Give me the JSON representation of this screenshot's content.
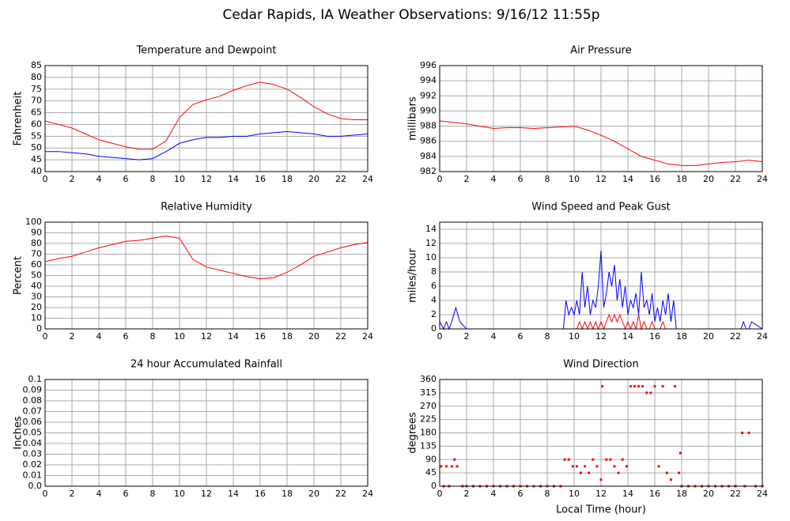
{
  "title": "Cedar Rapids, IA Weather Observations: 9/16/12 11:55p",
  "chart_data": [
    {
      "type": "line",
      "title": "Temperature and Dewpoint",
      "ylabel": "Fahrenheit",
      "x": [
        0,
        1,
        2,
        3,
        4,
        5,
        6,
        7,
        8,
        9,
        10,
        11,
        12,
        13,
        14,
        15,
        16,
        17,
        18,
        19,
        20,
        21,
        22,
        23,
        24
      ],
      "series": [
        {
          "name": "Temperature",
          "color": "#ff0000",
          "values": [
            61.5,
            60,
            58.5,
            56,
            53.5,
            52,
            50.5,
            49.5,
            49.5,
            53,
            63,
            68.5,
            70.5,
            72,
            74.5,
            76.5,
            78,
            77,
            75,
            71.5,
            67.5,
            64.5,
            62.5,
            62,
            62
          ]
        },
        {
          "name": "Dewpoint",
          "color": "#0000ff",
          "values": [
            48.5,
            48.5,
            48,
            47.5,
            46.5,
            46,
            45.5,
            45,
            45.5,
            48.5,
            52,
            53.5,
            54.5,
            54.5,
            55,
            55,
            56,
            56.5,
            57,
            56.5,
            56,
            55,
            55,
            55.5,
            56
          ]
        }
      ],
      "xlim": [
        0,
        24
      ],
      "ylim": [
        40,
        85
      ],
      "xticks": [
        0,
        2,
        4,
        6,
        8,
        10,
        12,
        14,
        16,
        18,
        20,
        22,
        24
      ],
      "yticks": [
        40,
        45,
        50,
        55,
        60,
        65,
        70,
        75,
        80,
        85
      ],
      "grid": true
    },
    {
      "type": "line",
      "title": "Air Pressure",
      "ylabel": "millibars",
      "x": [
        0,
        1,
        2,
        3,
        4,
        5,
        6,
        7,
        8,
        9,
        10,
        11,
        12,
        13,
        14,
        15,
        16,
        17,
        18,
        19,
        20,
        21,
        22,
        23,
        24
      ],
      "series": [
        {
          "name": "Pressure",
          "color": "#ff0000",
          "values": [
            988.7,
            988.5,
            988.3,
            988,
            987.7,
            987.8,
            987.8,
            987.7,
            987.8,
            987.9,
            988,
            987.5,
            986.8,
            986,
            985,
            984,
            983.5,
            983,
            982.8,
            982.8,
            983,
            983.2,
            983.3,
            983.5,
            983.3
          ]
        }
      ],
      "xlim": [
        0,
        24
      ],
      "ylim": [
        982,
        996
      ],
      "xticks": [
        0,
        2,
        4,
        6,
        8,
        10,
        12,
        14,
        16,
        18,
        20,
        22,
        24
      ],
      "yticks": [
        982,
        984,
        986,
        988,
        990,
        992,
        994,
        996
      ],
      "grid": true
    },
    {
      "type": "line",
      "title": "Relative Humidity",
      "ylabel": "Percent",
      "x": [
        0,
        1,
        2,
        3,
        4,
        5,
        6,
        7,
        8,
        9,
        10,
        11,
        12,
        13,
        14,
        15,
        16,
        17,
        18,
        19,
        20,
        21,
        22,
        23,
        24
      ],
      "series": [
        {
          "name": "Humidity",
          "color": "#ff0000",
          "values": [
            63,
            66,
            68,
            72,
            76,
            79,
            82,
            83,
            85,
            87,
            85,
            65,
            58,
            55,
            52,
            49,
            47,
            48,
            53,
            60,
            68,
            72,
            76,
            79,
            81
          ]
        }
      ],
      "xlim": [
        0,
        24
      ],
      "ylim": [
        0,
        100
      ],
      "xticks": [
        0,
        2,
        4,
        6,
        8,
        10,
        12,
        14,
        16,
        18,
        20,
        22,
        24
      ],
      "yticks": [
        0,
        10,
        20,
        30,
        40,
        50,
        60,
        70,
        80,
        90,
        100
      ],
      "grid": true
    },
    {
      "type": "line",
      "title": "Wind Speed and Peak Gust",
      "ylabel": "miles/hour",
      "x": [
        0,
        0.3,
        0.5,
        0.7,
        0.9,
        1.2,
        1.5,
        2,
        9.2,
        9.4,
        9.6,
        9.8,
        10,
        10.2,
        10.4,
        10.6,
        10.8,
        11,
        11.2,
        11.4,
        11.6,
        11.8,
        12,
        12.2,
        12.4,
        12.6,
        12.8,
        13,
        13.2,
        13.4,
        13.6,
        13.8,
        14,
        14.2,
        14.4,
        14.6,
        14.8,
        15,
        15.2,
        15.4,
        15.6,
        15.8,
        16,
        16.2,
        16.4,
        16.6,
        16.8,
        17,
        17.2,
        17.4,
        17.6,
        17.8,
        18,
        22.4,
        22.6,
        22.8,
        23,
        23.2,
        24
      ],
      "series": [
        {
          "name": "Wind Speed",
          "color": "#0000ff",
          "values": [
            1,
            0,
            1,
            0,
            1,
            3,
            1,
            0,
            0,
            4,
            2,
            3,
            2,
            4,
            2,
            8,
            3,
            6,
            2,
            4,
            3,
            6,
            11,
            3,
            5,
            8,
            6,
            9,
            4,
            7,
            3,
            6,
            2,
            4,
            3,
            5,
            2,
            8,
            3,
            4,
            2,
            5,
            1,
            3,
            1,
            4,
            2,
            5,
            1,
            4,
            0,
            0,
            0,
            0,
            1,
            0,
            0,
            1,
            0
          ]
        },
        {
          "name": "Peak Gust",
          "color": "#ff0000",
          "values": [
            0,
            0,
            0,
            0,
            0,
            0,
            0,
            0,
            0,
            0,
            0,
            0,
            0,
            0,
            1,
            0,
            1,
            0,
            1,
            0,
            1,
            0,
            1,
            0,
            1,
            2,
            1,
            2,
            1,
            2,
            1,
            0,
            1,
            0,
            1,
            0,
            2,
            0,
            1,
            0,
            0,
            1,
            0,
            0,
            0,
            1,
            0,
            0,
            0,
            0,
            0,
            0,
            0,
            0,
            0,
            0,
            0,
            0,
            0
          ]
        }
      ],
      "xlim": [
        0,
        24
      ],
      "ylim": [
        0,
        15
      ],
      "xticks": [
        0,
        2,
        4,
        6,
        8,
        10,
        12,
        14,
        16,
        18,
        20,
        22,
        24
      ],
      "yticks": [
        0,
        2,
        4,
        6,
        8,
        10,
        12,
        14
      ],
      "grid": true
    },
    {
      "type": "line",
      "title": "24 hour Accumulated Rainfall",
      "ylabel": "Inches",
      "x": [
        0,
        24
      ],
      "series": [
        {
          "name": "Rainfall",
          "color": "#ff0000",
          "values": [
            0,
            0
          ]
        }
      ],
      "xlim": [
        0,
        24
      ],
      "ylim": [
        0,
        0.1
      ],
      "xticks": [
        0,
        2,
        4,
        6,
        8,
        10,
        12,
        14,
        16,
        18,
        20,
        22,
        24
      ],
      "yticks": [
        {
          "value": 0,
          "label": "0.0"
        },
        0.01,
        0.02,
        0.03,
        0.04,
        0.05,
        0.06,
        0.07,
        0.08,
        0.09,
        0.1
      ],
      "grid": true
    },
    {
      "type": "scatter",
      "title": "Wind Direction",
      "ylabel": "degrees",
      "xlabel": "Local Time (hour)",
      "color": "#ff0000",
      "x": [
        0.1,
        0.3,
        0.5,
        0.7,
        0.9,
        1.1,
        1.3,
        1.7,
        2,
        2.5,
        3,
        3.5,
        4,
        4.5,
        5,
        5.5,
        6,
        6.5,
        7,
        7.5,
        8,
        8.5,
        9,
        9.3,
        9.6,
        9.9,
        10.2,
        10.5,
        10.8,
        11.1,
        11.4,
        11.7,
        12,
        12.1,
        12.4,
        12.7,
        13,
        13.3,
        13.6,
        13.9,
        14.2,
        14.5,
        14.8,
        15.1,
        15.4,
        15.7,
        16,
        16.3,
        16.6,
        16.9,
        17.2,
        17.5,
        17.8,
        17.9,
        18,
        18.5,
        19,
        19.5,
        20,
        20.5,
        21,
        21.5,
        22,
        22.5,
        22.7,
        23,
        23.5,
        24
      ],
      "values": [
        67,
        0,
        67,
        0,
        67,
        90,
        67,
        0,
        0,
        0,
        0,
        0,
        0,
        0,
        0,
        0,
        0,
        0,
        0,
        0,
        0,
        0,
        0,
        90,
        90,
        67,
        67,
        45,
        67,
        45,
        90,
        67,
        22,
        337,
        90,
        90,
        67,
        45,
        90,
        67,
        337,
        337,
        337,
        337,
        315,
        315,
        337,
        67,
        337,
        45,
        22,
        337,
        45,
        112,
        0,
        0,
        0,
        0,
        0,
        0,
        0,
        0,
        0,
        180,
        0,
        180,
        0,
        0
      ],
      "xlim": [
        0,
        24
      ],
      "ylim": [
        0,
        360
      ],
      "xticks": [
        0,
        2,
        4,
        6,
        8,
        10,
        12,
        14,
        16,
        18,
        20,
        22,
        24
      ],
      "yticks": [
        0,
        45,
        90,
        135,
        180,
        225,
        270,
        315,
        360
      ],
      "grid": true
    }
  ]
}
